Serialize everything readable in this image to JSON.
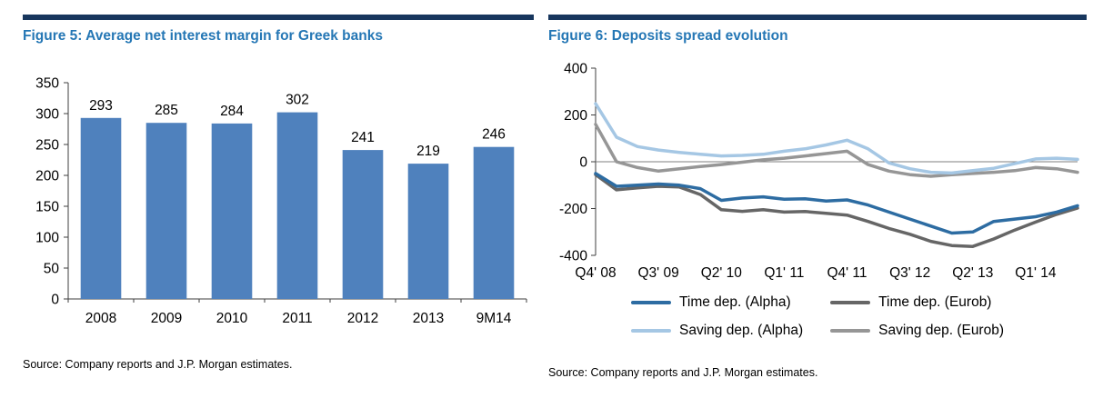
{
  "colors": {
    "accent_bar": "#17365d",
    "title_blue": "#2577b5",
    "bar_blue": "#4f81bd"
  },
  "figure5": {
    "title": "Figure 5: Average net interest margin for Greek banks",
    "source": "Source: Company reports and J.P. Morgan estimates."
  },
  "figure6": {
    "title": "Figure 6: Deposits spread evolution",
    "source": "Source: Company reports and J.P. Morgan estimates."
  },
  "chart_data": [
    {
      "type": "bar",
      "title": "Figure 5: Average net interest margin for Greek banks",
      "categories": [
        "2008",
        "2009",
        "2010",
        "2011",
        "2012",
        "2013",
        "9M14"
      ],
      "values": [
        293,
        285,
        284,
        302,
        241,
        219,
        246
      ],
      "bar_color": "#4f81bd",
      "ylim": [
        0,
        350
      ],
      "ytick_step": 50,
      "grid": false,
      "data_labels": true,
      "legend_position": "none"
    },
    {
      "type": "line",
      "title": "Figure 6: Deposits spread evolution",
      "x": [
        "Q4' 08",
        "Q1' 09",
        "Q2' 09",
        "Q3' 09",
        "Q4' 09",
        "Q1' 10",
        "Q2' 10",
        "Q3' 10",
        "Q4' 10",
        "Q1' 11",
        "Q2' 11",
        "Q3' 11",
        "Q4' 11",
        "Q1' 12",
        "Q2' 12",
        "Q3' 12",
        "Q4' 12",
        "Q1' 13",
        "Q2' 13",
        "Q3' 13",
        "Q4' 13",
        "Q1' 14",
        "Q2' 14",
        "Q3' 14"
      ],
      "xtick_labels": [
        "Q4' 08",
        "Q3' 09",
        "Q2' 10",
        "Q1' 11",
        "Q4' 11",
        "Q3' 12",
        "Q2' 13",
        "Q1' 14"
      ],
      "xtick_every": 3,
      "ylim": [
        -400,
        400
      ],
      "ytick_step": 200,
      "grid": false,
      "legend_position": "bottom",
      "series": [
        {
          "name": "Time dep. (Alpha)",
          "color": "#2d6ca2",
          "values": [
            -50,
            -105,
            -100,
            -95,
            -100,
            -115,
            -165,
            -155,
            -150,
            -160,
            -158,
            -168,
            -163,
            -185,
            -215,
            -245,
            -275,
            -305,
            -300,
            -255,
            -245,
            -235,
            -215,
            -188
          ]
        },
        {
          "name": "Time dep. (Eurob)",
          "color": "#666666",
          "values": [
            -55,
            -120,
            -112,
            -105,
            -108,
            -140,
            -205,
            -212,
            -205,
            -215,
            -213,
            -220,
            -228,
            -255,
            -285,
            -310,
            -340,
            -358,
            -362,
            -330,
            -292,
            -258,
            -225,
            -198
          ]
        },
        {
          "name": "Saving dep. (Alpha)",
          "color": "#a5c7e4",
          "values": [
            248,
            105,
            65,
            50,
            40,
            32,
            25,
            27,
            32,
            45,
            55,
            72,
            92,
            55,
            -5,
            -30,
            -45,
            -48,
            -38,
            -28,
            -8,
            12,
            15,
            10
          ]
        },
        {
          "name": "Saving dep. (Eurob)",
          "color": "#969696",
          "values": [
            160,
            0,
            -25,
            -40,
            -30,
            -20,
            -12,
            -2,
            8,
            15,
            25,
            35,
            45,
            -12,
            -40,
            -55,
            -62,
            -55,
            -50,
            -45,
            -38,
            -25,
            -30,
            -45
          ]
        }
      ]
    }
  ]
}
